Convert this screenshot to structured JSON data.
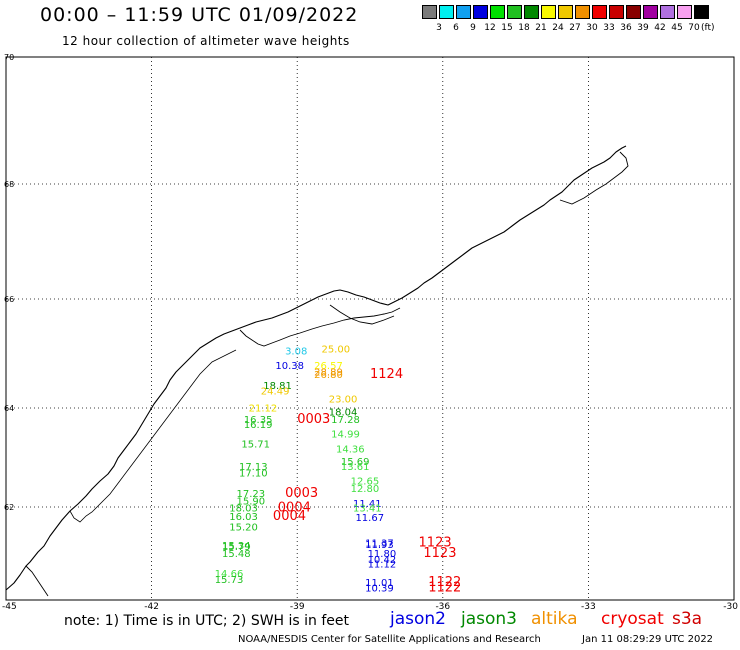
{
  "header": {
    "title": "00:00 – 11:59 UTC 01/09/2022",
    "subtitle": "12 hour collection of altimeter wave heights"
  },
  "legend": {
    "unit": "(ft)",
    "bins": [
      {
        "label": "3",
        "color": "#7a7a7a"
      },
      {
        "label": "6",
        "color": "#00f0f0"
      },
      {
        "label": "9",
        "color": "#10a0f0"
      },
      {
        "label": "12",
        "color": "#0000e0"
      },
      {
        "label": "15",
        "color": "#00e000"
      },
      {
        "label": "18",
        "color": "#20c020"
      },
      {
        "label": "21",
        "color": "#008800"
      },
      {
        "label": "24",
        "color": "#f8f800"
      },
      {
        "label": "27",
        "color": "#f0c800"
      },
      {
        "label": "30",
        "color": "#f09000"
      },
      {
        "label": "33",
        "color": "#f00000"
      },
      {
        "label": "36",
        "color": "#c80000"
      },
      {
        "label": "39",
        "color": "#880000"
      },
      {
        "label": "42",
        "color": "#a000a0"
      },
      {
        "label": "45",
        "color": "#b070e0"
      },
      {
        "label": "70",
        "color": "#f8a0f0"
      },
      {
        "label": "",
        "color": "#000000"
      }
    ]
  },
  "map": {
    "lat_range": [
      60,
      70
    ],
    "lon_range": [
      -45,
      -30
    ],
    "lat_labels": [
      "70",
      "68",
      "66",
      "64",
      "62"
    ],
    "lon_labels": [
      "-45",
      "-42",
      "-39",
      "-36",
      "-33",
      "-30"
    ],
    "gridlines": "dotted",
    "coastline": "Southeast Greenland"
  },
  "observations": [
    {
      "value": "3.08",
      "color": "#20c8e8",
      "lat": 64.98,
      "lon": -39.25
    },
    {
      "value": "25.00",
      "color": "#f0c800",
      "lat": 65.02,
      "lon": -38.5
    },
    {
      "value": "10.38",
      "color": "#0000e0",
      "lat": 64.72,
      "lon": -39.45
    },
    {
      "value": "26.57",
      "color": "#f8f800",
      "lat": 64.72,
      "lon": -38.65
    },
    {
      "value": "28.89",
      "color": "#f09000",
      "lat": 64.6,
      "lon": -38.65
    },
    {
      "value": "26.80",
      "color": "#f0a000",
      "lat": 64.55,
      "lon": -38.65
    },
    {
      "value": "1124",
      "color": "#f00000",
      "lat": 64.55,
      "lon": -37.5,
      "label": true
    },
    {
      "value": "18.81",
      "color": "#008800",
      "lat": 64.35,
      "lon": -39.7
    },
    {
      "value": "24.49",
      "color": "#f0c800",
      "lat": 64.25,
      "lon": -39.75
    },
    {
      "value": "23.00",
      "color": "#f0c800",
      "lat": 64.1,
      "lon": -38.35
    },
    {
      "value": "21.12",
      "color": "#f0e000",
      "lat": 63.93,
      "lon": -40.0
    },
    {
      "value": "18.04",
      "color": "#008800",
      "lat": 63.85,
      "lon": -38.35
    },
    {
      "value": "16.35",
      "color": "#20c020",
      "lat": 63.7,
      "lon": -40.1
    },
    {
      "value": "0003",
      "color": "#f00000",
      "lat": 63.7,
      "lon": -39.0,
      "label": true
    },
    {
      "value": "17.28",
      "color": "#20c020",
      "lat": 63.7,
      "lon": -38.3
    },
    {
      "value": "16.19",
      "color": "#20c020",
      "lat": 63.6,
      "lon": -40.1
    },
    {
      "value": "14.99",
      "color": "#40e040",
      "lat": 63.4,
      "lon": -38.3
    },
    {
      "value": "15.71",
      "color": "#20c020",
      "lat": 63.2,
      "lon": -40.15
    },
    {
      "value": "14.36",
      "color": "#40e040",
      "lat": 63.1,
      "lon": -38.2
    },
    {
      "value": "15.69",
      "color": "#20c020",
      "lat": 62.85,
      "lon": -38.1
    },
    {
      "value": "13.61",
      "color": "#40e040",
      "lat": 62.75,
      "lon": -38.1
    },
    {
      "value": "17.13",
      "color": "#20c020",
      "lat": 62.75,
      "lon": -40.2
    },
    {
      "value": "17.10",
      "color": "#20c020",
      "lat": 62.62,
      "lon": -40.2
    },
    {
      "value": "12.65",
      "color": "#40e040",
      "lat": 62.45,
      "lon": -37.9
    },
    {
      "value": "12.80",
      "color": "#40e040",
      "lat": 62.3,
      "lon": -37.9
    },
    {
      "value": "17.23",
      "color": "#20c020",
      "lat": 62.2,
      "lon": -40.25
    },
    {
      "value": "0003",
      "color": "#f00000",
      "lat": 62.2,
      "lon": -39.25,
      "label": true
    },
    {
      "value": "15.90",
      "color": "#20c020",
      "lat": 62.05,
      "lon": -40.25
    },
    {
      "value": "11.41",
      "color": "#0000e0",
      "lat": 62.0,
      "lon": -37.85
    },
    {
      "value": "18.03",
      "color": "#20c020",
      "lat": 61.9,
      "lon": -40.4
    },
    {
      "value": "0004",
      "color": "#f00000",
      "lat": 61.9,
      "lon": -39.4,
      "label": true
    },
    {
      "value": "13.41",
      "color": "#40e040",
      "lat": 61.9,
      "lon": -37.85
    },
    {
      "value": "16.03",
      "color": "#20c020",
      "lat": 61.72,
      "lon": -40.4
    },
    {
      "value": "0004",
      "color": "#f00000",
      "lat": 61.72,
      "lon": -39.5,
      "label": true
    },
    {
      "value": "11.67",
      "color": "#0000e0",
      "lat": 61.7,
      "lon": -37.8
    },
    {
      "value": "15.20",
      "color": "#20c020",
      "lat": 61.5,
      "lon": -40.4
    },
    {
      "value": "11.37",
      "color": "#0000e0",
      "lat": 61.15,
      "lon": -37.6
    },
    {
      "value": "11.93",
      "color": "#0000e0",
      "lat": 61.12,
      "lon": -37.6
    },
    {
      "value": "1123",
      "color": "#f00000",
      "lat": 61.15,
      "lon": -36.5,
      "label": true
    },
    {
      "value": "15.34",
      "color": "#20c020",
      "lat": 61.1,
      "lon": -40.55
    },
    {
      "value": "15.79",
      "color": "#20c020",
      "lat": 61.08,
      "lon": -40.55
    },
    {
      "value": "15.48",
      "color": "#20c020",
      "lat": 60.92,
      "lon": -40.55
    },
    {
      "value": "11.80",
      "color": "#0000e0",
      "lat": 60.92,
      "lon": -37.55
    },
    {
      "value": "1123",
      "color": "#f00000",
      "lat": 60.92,
      "lon": -36.4,
      "label": true
    },
    {
      "value": "10.42",
      "color": "#0000e0",
      "lat": 60.8,
      "lon": -37.55
    },
    {
      "value": "11.12",
      "color": "#0000e0",
      "lat": 60.7,
      "lon": -37.55
    },
    {
      "value": "14.66",
      "color": "#40e040",
      "lat": 60.5,
      "lon": -40.7
    },
    {
      "value": "15.73",
      "color": "#20c020",
      "lat": 60.37,
      "lon": -40.7
    },
    {
      "value": "11.01",
      "color": "#0000e0",
      "lat": 60.3,
      "lon": -37.6
    },
    {
      "value": "1122",
      "color": "#f00000",
      "lat": 60.3,
      "lon": -36.3,
      "label": true
    },
    {
      "value": "10.39",
      "color": "#0000e0",
      "lat": 60.18,
      "lon": -37.6
    },
    {
      "value": "1122",
      "color": "#f00000",
      "lat": 60.18,
      "lon": -36.3,
      "label": true
    }
  ],
  "footer": {
    "note": "note:  1) Time is in UTC;  2) SWH is in feet",
    "satellites": [
      {
        "name": "jason2",
        "color": "#0000e0"
      },
      {
        "name": "jason3",
        "color": "#008800"
      },
      {
        "name": "altika",
        "color": "#f09000"
      },
      {
        "name": "cryosat",
        "color": "#f00000"
      },
      {
        "name": "s3a",
        "color": "#d00000"
      }
    ],
    "credit": "NOAA/NESDIS Center for Satellite Applications and Research",
    "timestamp": "Jan 11 08:29:29 UTC 2022"
  }
}
